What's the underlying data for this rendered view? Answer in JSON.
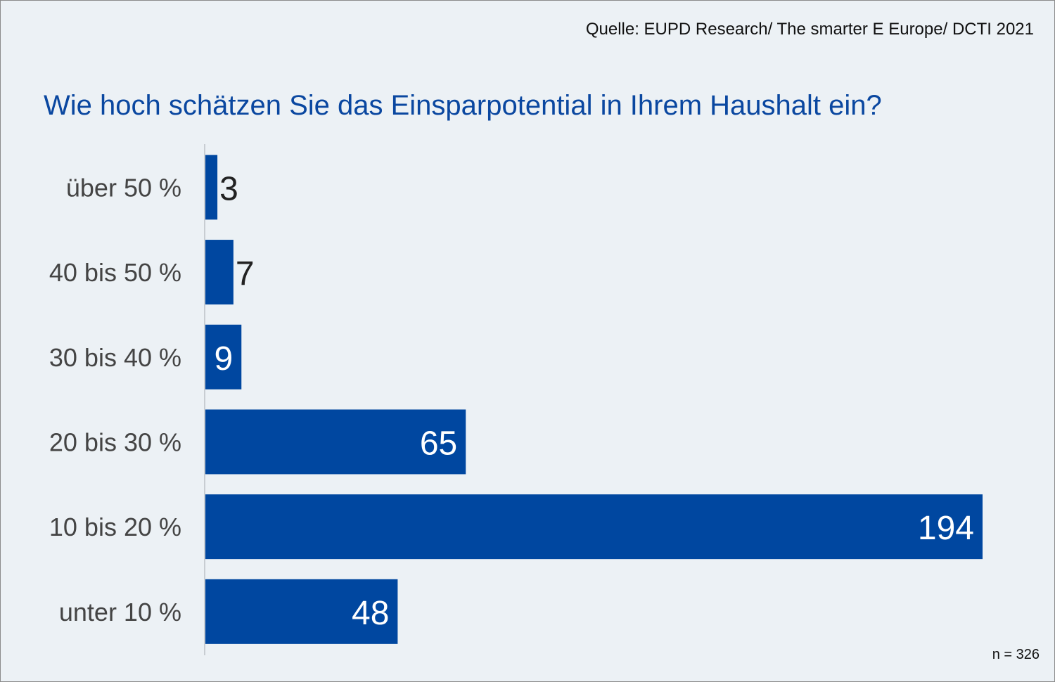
{
  "source": "Quelle: EUPD Research/ The smarter E Europe/ DCTI 2021",
  "n_label": "n = 326",
  "chart_data": {
    "type": "bar",
    "orientation": "horizontal",
    "title": "Wie hoch schätzen Sie das Einsparpotential in Ihrem Haushalt ein?",
    "categories": [
      "über 50 %",
      "40 bis 50 %",
      "30 bis 40 %",
      "20 bis 30 %",
      "10 bis 20 %",
      "unter 10 %"
    ],
    "values": [
      3,
      7,
      9,
      65,
      194,
      48
    ],
    "xlim": [
      0,
      194
    ],
    "grid": false,
    "bar_color": "#0047a0"
  }
}
